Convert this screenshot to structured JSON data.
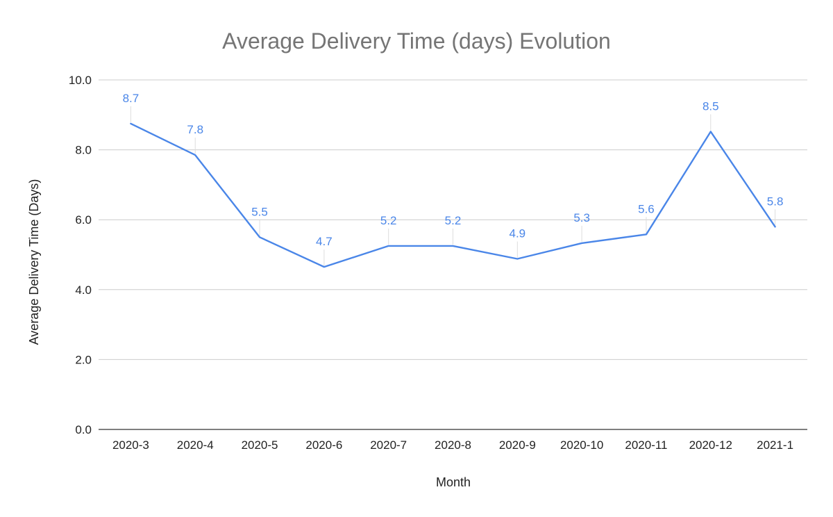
{
  "chart_data": {
    "type": "line",
    "title": "Average Delivery Time (days) Evolution",
    "xlabel": "Month",
    "ylabel": "Average Delivery Time (Days)",
    "categories": [
      "2020-3",
      "2020-4",
      "2020-5",
      "2020-6",
      "2020-7",
      "2020-8",
      "2020-9",
      "2020-10",
      "2020-11",
      "2020-12",
      "2021-1"
    ],
    "series": [
      {
        "values": [
          8.75,
          7.85,
          5.5,
          4.65,
          5.25,
          5.25,
          4.88,
          5.33,
          5.58,
          8.52,
          5.8
        ],
        "data_labels": [
          "8.7",
          "7.8",
          "5.5",
          "4.7",
          "5.2",
          "5.2",
          "4.9",
          "5.3",
          "5.6",
          "8.5",
          "5.8"
        ],
        "color": "#4a86e8"
      }
    ],
    "ylim": [
      0,
      10
    ],
    "yticks": [
      "0.0",
      "2.0",
      "4.0",
      "6.0",
      "8.0",
      "10.0"
    ],
    "grid": true,
    "legend": "none"
  }
}
